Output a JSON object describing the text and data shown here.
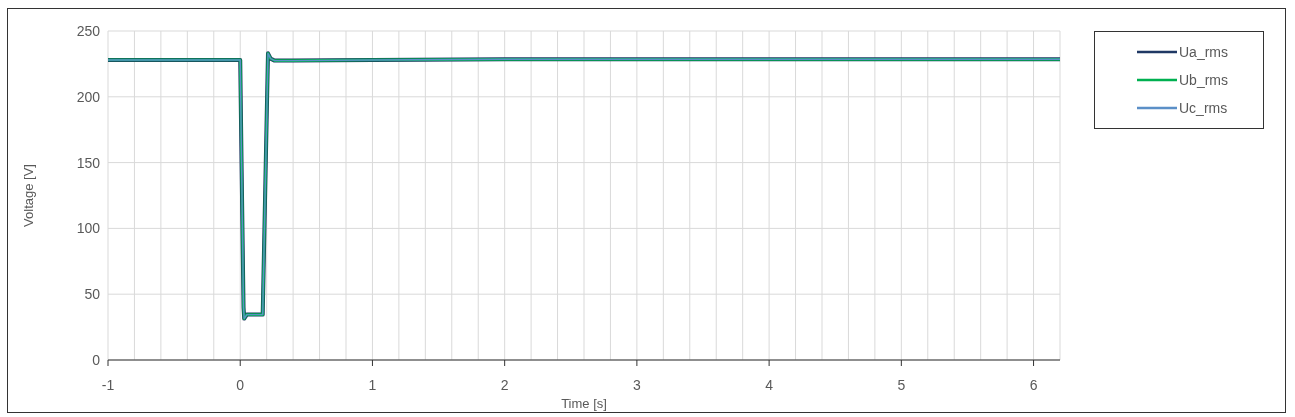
{
  "chart_data": {
    "type": "line",
    "xlabel": "Time [s]",
    "ylabel": "Voltage [V]",
    "x": [
      -1,
      0,
      0.01,
      0.025,
      0.03,
      0.05,
      0.17,
      0.21,
      0.23,
      0.26,
      0.4,
      1,
      2,
      3,
      4,
      5,
      6.2
    ],
    "series": [
      {
        "name": "Ua_rms",
        "color": "#1f3864",
        "values": [
          228,
          228,
          150,
          40,
          31.5,
          34.5,
          34.5,
          233,
          229,
          227.5,
          227.5,
          228,
          228.5,
          228.5,
          228.5,
          228.5,
          228.5
        ]
      },
      {
        "name": "Ub_rms",
        "color": "#00b050",
        "values": [
          228,
          228,
          150,
          40,
          31.5,
          34.5,
          34.5,
          233,
          229,
          227.5,
          227.5,
          228,
          228.5,
          228.5,
          228.5,
          228.5,
          228.5
        ]
      },
      {
        "name": "Uc_rms",
        "color": "#5b8fc7",
        "values": [
          228,
          228,
          150,
          40,
          31.5,
          34.5,
          34.5,
          233,
          229,
          227.5,
          227.5,
          228,
          228.5,
          228.5,
          228.5,
          228.5,
          228.5
        ]
      }
    ],
    "xlim": [
      -1,
      6.2
    ],
    "xticks": [
      -1,
      {
        "value": -0.8,
        "label": null
      },
      {
        "value": -0.6,
        "label": null
      },
      {
        "value": -0.4,
        "label": null
      },
      {
        "value": -0.2,
        "label": null
      },
      0,
      {
        "value": 0.2,
        "label": null
      },
      {
        "value": 0.4,
        "label": null
      },
      {
        "value": 0.6,
        "label": null
      },
      {
        "value": 0.8,
        "label": null
      },
      1,
      {
        "value": 1.2,
        "label": null
      },
      {
        "value": 1.4,
        "label": null
      },
      {
        "value": 1.6,
        "label": null
      },
      {
        "value": 1.8,
        "label": null
      },
      2,
      {
        "value": 2.2,
        "label": null
      },
      {
        "value": 2.4,
        "label": null
      },
      {
        "value": 2.6,
        "label": null
      },
      {
        "value": 2.8,
        "label": null
      },
      3,
      {
        "value": 3.2,
        "label": null
      },
      {
        "value": 3.4,
        "label": null
      },
      {
        "value": 3.6,
        "label": null
      },
      {
        "value": 3.8,
        "label": null
      },
      4,
      {
        "value": 4.2,
        "label": null
      },
      {
        "value": 4.4,
        "label": null
      },
      {
        "value": 4.6,
        "label": null
      },
      {
        "value": 4.8,
        "label": null
      },
      5,
      {
        "value": 5.2,
        "label": null
      },
      {
        "value": 5.4,
        "label": null
      },
      {
        "value": 5.6,
        "label": null
      },
      {
        "value": 5.8,
        "label": null
      },
      6
    ],
    "ylim": [
      0,
      250
    ],
    "yticks": [
      0,
      50,
      100,
      150,
      200,
      250
    ],
    "grid": true,
    "legend": "top right",
    "marker": "none",
    "line_style": "solid"
  }
}
